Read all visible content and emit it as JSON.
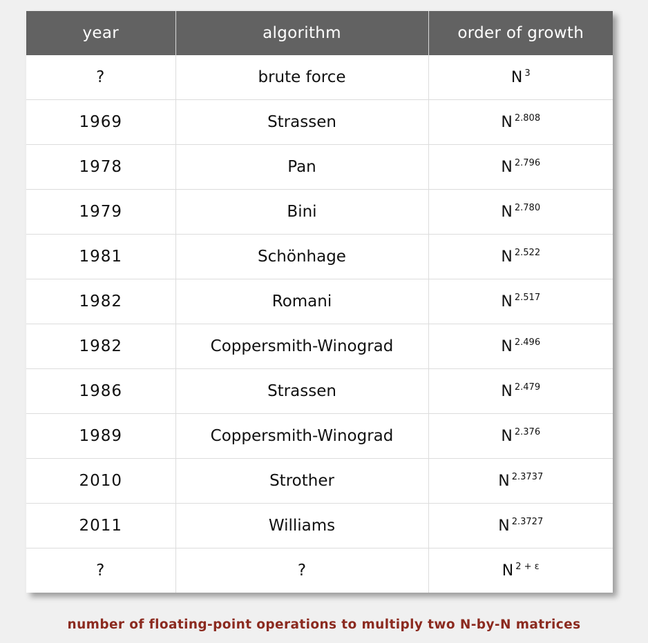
{
  "table": {
    "headers": {
      "year": "year",
      "algorithm": "algorithm",
      "order": "order of growth"
    },
    "rows": [
      {
        "year": "?",
        "algorithm": "brute force",
        "base": "N",
        "exponent": "3"
      },
      {
        "year": "1969",
        "algorithm": "Strassen",
        "base": "N",
        "exponent": "2.808"
      },
      {
        "year": "1978",
        "algorithm": "Pan",
        "base": "N",
        "exponent": "2.796"
      },
      {
        "year": "1979",
        "algorithm": "Bini",
        "base": "N",
        "exponent": "2.780"
      },
      {
        "year": "1981",
        "algorithm": "Schönhage",
        "base": "N",
        "exponent": "2.522"
      },
      {
        "year": "1982",
        "algorithm": "Romani",
        "base": "N",
        "exponent": "2.517"
      },
      {
        "year": "1982",
        "algorithm": "Coppersmith-Winograd",
        "base": "N",
        "exponent": "2.496"
      },
      {
        "year": "1986",
        "algorithm": "Strassen",
        "base": "N",
        "exponent": "2.479"
      },
      {
        "year": "1989",
        "algorithm": "Coppersmith-Winograd",
        "base": "N",
        "exponent": "2.376"
      },
      {
        "year": "2010",
        "algorithm": "Strother",
        "base": "N",
        "exponent": "2.3737"
      },
      {
        "year": "2011",
        "algorithm": "Williams",
        "base": "N",
        "exponent": "2.3727"
      },
      {
        "year": "?",
        "algorithm": "?",
        "base": "N",
        "exponent": "2 + ε"
      }
    ]
  },
  "caption": "number of floating-point operations to multiply two N-by-N matrices",
  "colors": {
    "header_bg": "#626262",
    "caption": "#8b2a1f",
    "page_bg": "#f0f0f0"
  }
}
